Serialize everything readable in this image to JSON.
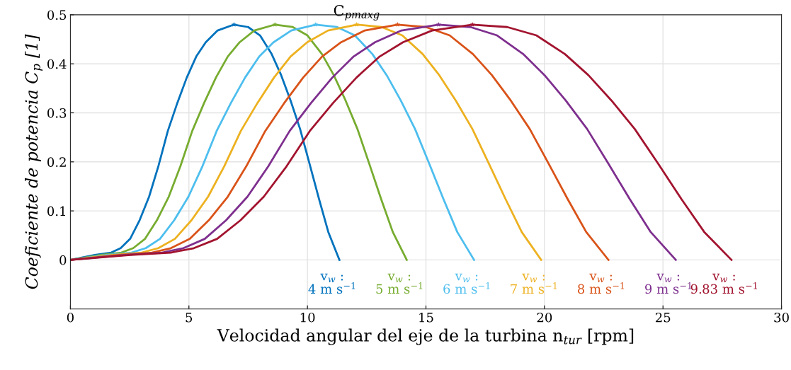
{
  "chart_data": {
    "type": "line",
    "xlabel": "Velocidad angular del eje de la turbina n$_{tur}$ [rpm]",
    "ylabel": "Coeficiente de potencia C$_{p}$ [1]",
    "xlim": [
      0,
      30
    ],
    "ylim": [
      -0.1,
      0.5
    ],
    "xticks": [
      0,
      5,
      10,
      15,
      20,
      25,
      30
    ],
    "yticks": [
      0,
      0.1,
      0.2,
      0.3,
      0.4,
      0.5
    ],
    "grid": true,
    "line_style": "solid",
    "marker": "none",
    "series": [
      {
        "name": "v$_{w}$ :\n4 m s$^{−1}$",
        "color": "#0072bd",
        "x": [
          0,
          1.03,
          1.72,
          2.12,
          2.52,
          2.92,
          3.32,
          3.71,
          4.11,
          4.51,
          4.91,
          5.31,
          5.71,
          6.21,
          6.9,
          7.5,
          8.0,
          8.49,
          8.89,
          9.29,
          9.69,
          10.09,
          10.49,
          10.88,
          11.35
        ],
        "values": [
          0,
          0.01,
          0.015,
          0.024,
          0.043,
          0.081,
          0.129,
          0.191,
          0.263,
          0.32,
          0.372,
          0.415,
          0.444,
          0.468,
          0.48,
          0.475,
          0.458,
          0.42,
          0.377,
          0.325,
          0.267,
          0.196,
          0.124,
          0.057,
          0
        ]
      },
      {
        "name": "v$_{w}$ :\n5 m s$^{−1}$",
        "color": "#77ac30",
        "x": [
          0,
          1.29,
          2.15,
          2.65,
          3.15,
          3.65,
          4.15,
          4.64,
          5.14,
          5.64,
          6.14,
          6.64,
          7.14,
          7.76,
          8.63,
          9.38,
          10.0,
          10.61,
          11.11,
          11.61,
          12.11,
          12.61,
          13.11,
          13.6,
          14.19
        ],
        "values": [
          0,
          0.01,
          0.015,
          0.024,
          0.043,
          0.081,
          0.129,
          0.191,
          0.263,
          0.32,
          0.372,
          0.415,
          0.444,
          0.468,
          0.48,
          0.475,
          0.458,
          0.42,
          0.377,
          0.325,
          0.267,
          0.196,
          0.124,
          0.057,
          0
        ]
      },
      {
        "name": "v$_{w}$ :\n6 m s$^{−1}$",
        "color": "#4dbeee",
        "x": [
          0,
          1.55,
          2.58,
          3.18,
          3.78,
          4.38,
          4.98,
          5.57,
          6.17,
          6.77,
          7.37,
          7.97,
          8.57,
          9.32,
          10.35,
          11.25,
          12.0,
          12.74,
          13.34,
          13.94,
          14.54,
          15.14,
          15.74,
          16.32,
          17.03
        ],
        "values": [
          0,
          0.01,
          0.015,
          0.024,
          0.043,
          0.081,
          0.129,
          0.191,
          0.263,
          0.32,
          0.372,
          0.415,
          0.444,
          0.468,
          0.48,
          0.475,
          0.458,
          0.42,
          0.377,
          0.325,
          0.267,
          0.196,
          0.124,
          0.057,
          0
        ]
      },
      {
        "name": "v$_{w}$ :\n7 m s$^{−1}$",
        "color": "#edb120",
        "x": [
          0,
          1.8,
          3.01,
          3.71,
          4.41,
          5.11,
          5.81,
          6.49,
          7.19,
          7.89,
          8.59,
          9.29,
          9.99,
          10.87,
          12.08,
          13.13,
          14.0,
          14.86,
          15.56,
          16.26,
          16.96,
          17.66,
          18.36,
          19.04,
          19.86
        ],
        "values": [
          0,
          0.01,
          0.015,
          0.024,
          0.043,
          0.081,
          0.129,
          0.191,
          0.263,
          0.32,
          0.372,
          0.415,
          0.444,
          0.468,
          0.48,
          0.475,
          0.458,
          0.42,
          0.377,
          0.325,
          0.267,
          0.196,
          0.124,
          0.057,
          0
        ]
      },
      {
        "name": "v$_{w}$ :\n8 m s$^{−1}$",
        "color": "#d95319",
        "x": [
          0,
          2.06,
          3.44,
          4.24,
          5.04,
          5.84,
          6.64,
          7.42,
          8.22,
          9.02,
          9.82,
          10.62,
          11.42,
          12.42,
          13.8,
          15.0,
          16.0,
          16.98,
          17.78,
          18.58,
          19.38,
          20.18,
          20.98,
          21.76,
          22.7
        ],
        "values": [
          0,
          0.01,
          0.015,
          0.024,
          0.043,
          0.081,
          0.129,
          0.191,
          0.263,
          0.32,
          0.372,
          0.415,
          0.444,
          0.468,
          0.48,
          0.475,
          0.458,
          0.42,
          0.377,
          0.325,
          0.267,
          0.196,
          0.124,
          0.057,
          0
        ]
      },
      {
        "name": "v$_{w}$ :\n9 m s$^{−1}$",
        "color": "#7e2f8e",
        "x": [
          0,
          2.32,
          3.87,
          4.77,
          5.67,
          6.57,
          7.47,
          8.35,
          9.25,
          10.15,
          11.05,
          11.95,
          12.85,
          13.97,
          15.53,
          16.88,
          18.0,
          19.1,
          20.0,
          20.9,
          21.8,
          22.7,
          23.6,
          24.48,
          25.54
        ],
        "values": [
          0,
          0.01,
          0.015,
          0.024,
          0.043,
          0.081,
          0.129,
          0.191,
          0.263,
          0.32,
          0.372,
          0.415,
          0.444,
          0.468,
          0.48,
          0.475,
          0.458,
          0.42,
          0.377,
          0.325,
          0.267,
          0.196,
          0.124,
          0.057,
          0
        ]
      },
      {
        "name": "v$_{w}$ :\n9.83 m s$^{−1}$",
        "color": "#a2142f",
        "x": [
          0,
          2.53,
          4.23,
          5.21,
          6.19,
          7.18,
          8.16,
          9.12,
          10.1,
          11.08,
          12.07,
          13.05,
          14.03,
          15.26,
          16.96,
          18.43,
          19.66,
          20.86,
          21.85,
          22.83,
          23.81,
          24.8,
          25.78,
          26.74,
          27.89
        ],
        "values": [
          0,
          0.01,
          0.015,
          0.024,
          0.043,
          0.081,
          0.129,
          0.191,
          0.263,
          0.32,
          0.372,
          0.415,
          0.444,
          0.468,
          0.48,
          0.475,
          0.458,
          0.42,
          0.377,
          0.325,
          0.267,
          0.196,
          0.124,
          0.057,
          0
        ]
      },
      {
        "type": "scatter",
        "marker": "star",
        "x": [
          6.9,
          8.63,
          10.35,
          12.08,
          13.8,
          15.53,
          16.96
        ],
        "values": [
          0.48,
          0.48,
          0.48,
          0.48,
          0.48,
          0.48,
          0.48
        ],
        "colors": [
          "#0072bd",
          "#77ac30",
          "#4dbeee",
          "#edb120",
          "#d95319",
          "#7e2f8e",
          "#a2142f"
        ]
      }
    ],
    "annotations": [
      {
        "text": "C$_{pmaxg}$",
        "x": 12.08,
        "y": 0.48
      }
    ]
  }
}
